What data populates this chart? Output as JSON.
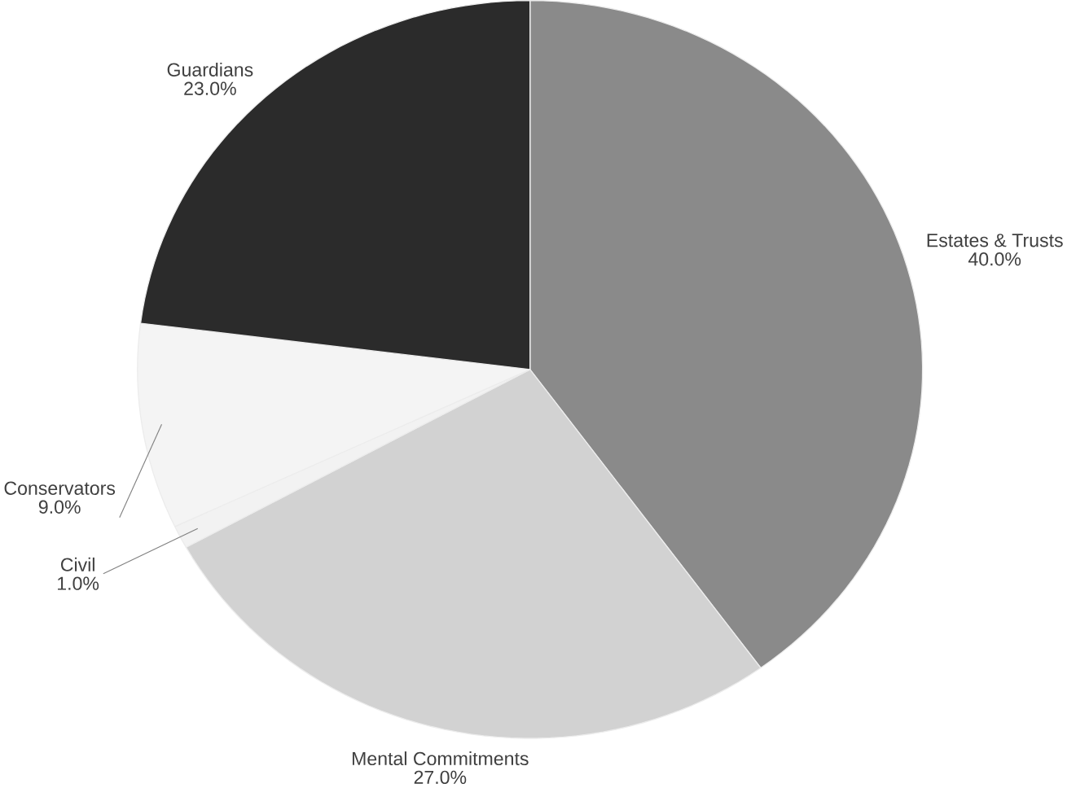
{
  "chart_data": {
    "type": "pie",
    "categories": [
      "Estates & Trusts",
      "Mental Commitments",
      "Civil",
      "Conservators",
      "Guardians"
    ],
    "values": [
      40.0,
      27.0,
      1.0,
      9.0,
      23.0
    ],
    "value_labels": [
      "40.0%",
      "27.0%",
      "1.0%",
      "9.0%",
      "23.0%"
    ],
    "colors": [
      "#8a8a8a",
      "#d2d2d2",
      "#f2f2f2",
      "#f4f4f4",
      "#2b2b2b"
    ]
  }
}
